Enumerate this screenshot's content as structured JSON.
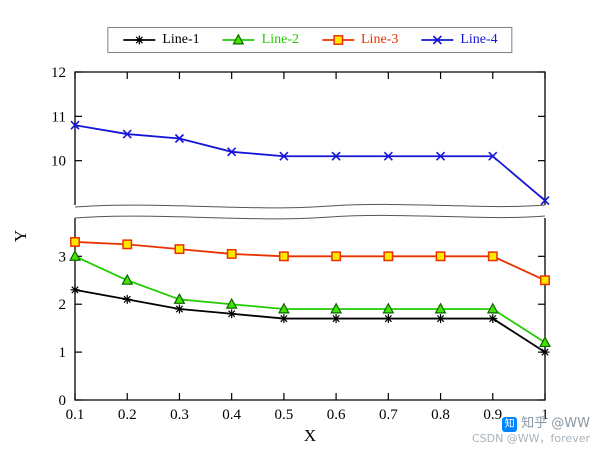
{
  "watermark": {
    "line1": "知乎 @WW",
    "line2": "CSDN @WW，forever",
    "logo_color": "#0084ff"
  },
  "chart_data": {
    "type": "line",
    "title": "",
    "xlabel": "X",
    "ylabel": "Y",
    "grid": false,
    "legend_position": "top-outside-horizontal",
    "x": [
      0.1,
      0.2,
      0.3,
      0.4,
      0.5,
      0.6,
      0.7,
      0.8,
      0.9,
      1.0
    ],
    "x_tick_labels": [
      "0.1",
      "0.2",
      "0.3",
      "0.4",
      "0.5",
      "0.6",
      "0.7",
      "0.8",
      "0.9",
      "1"
    ],
    "axis_break": {
      "lower_range": [
        0,
        3.8
      ],
      "upper_range": [
        9.0,
        12
      ],
      "lower_ticks": [
        3,
        2,
        1,
        0
      ],
      "upper_ticks": [
        12,
        11,
        10
      ]
    },
    "series": [
      {
        "name": "Line-1",
        "color": "#000000",
        "marker": "asterisk",
        "marker_edge": "#000000",
        "marker_fill": "none",
        "values": [
          2.3,
          2.1,
          1.9,
          1.8,
          1.7,
          1.7,
          1.7,
          1.7,
          1.7,
          1.0
        ]
      },
      {
        "name": "Line-2",
        "color": "#22cc00",
        "marker": "triangle",
        "marker_edge": "#076600",
        "marker_fill": "#44e400",
        "values": [
          3.0,
          2.5,
          2.1,
          2.0,
          1.9,
          1.9,
          1.9,
          1.9,
          1.9,
          1.2
        ]
      },
      {
        "name": "Line-3",
        "color": "#e83200",
        "marker": "square",
        "marker_edge": "#e83200",
        "marker_fill": "#ffe800",
        "values": [
          3.3,
          3.25,
          3.15,
          3.05,
          3.0,
          3.0,
          3.0,
          3.0,
          3.0,
          2.5
        ]
      },
      {
        "name": "Line-4",
        "color": "#1515d8",
        "marker": "x",
        "marker_edge": "#1515d8",
        "marker_fill": "none",
        "values": [
          10.8,
          10.6,
          10.5,
          10.2,
          10.1,
          10.1,
          10.1,
          10.1,
          10.1,
          9.1
        ]
      }
    ]
  }
}
